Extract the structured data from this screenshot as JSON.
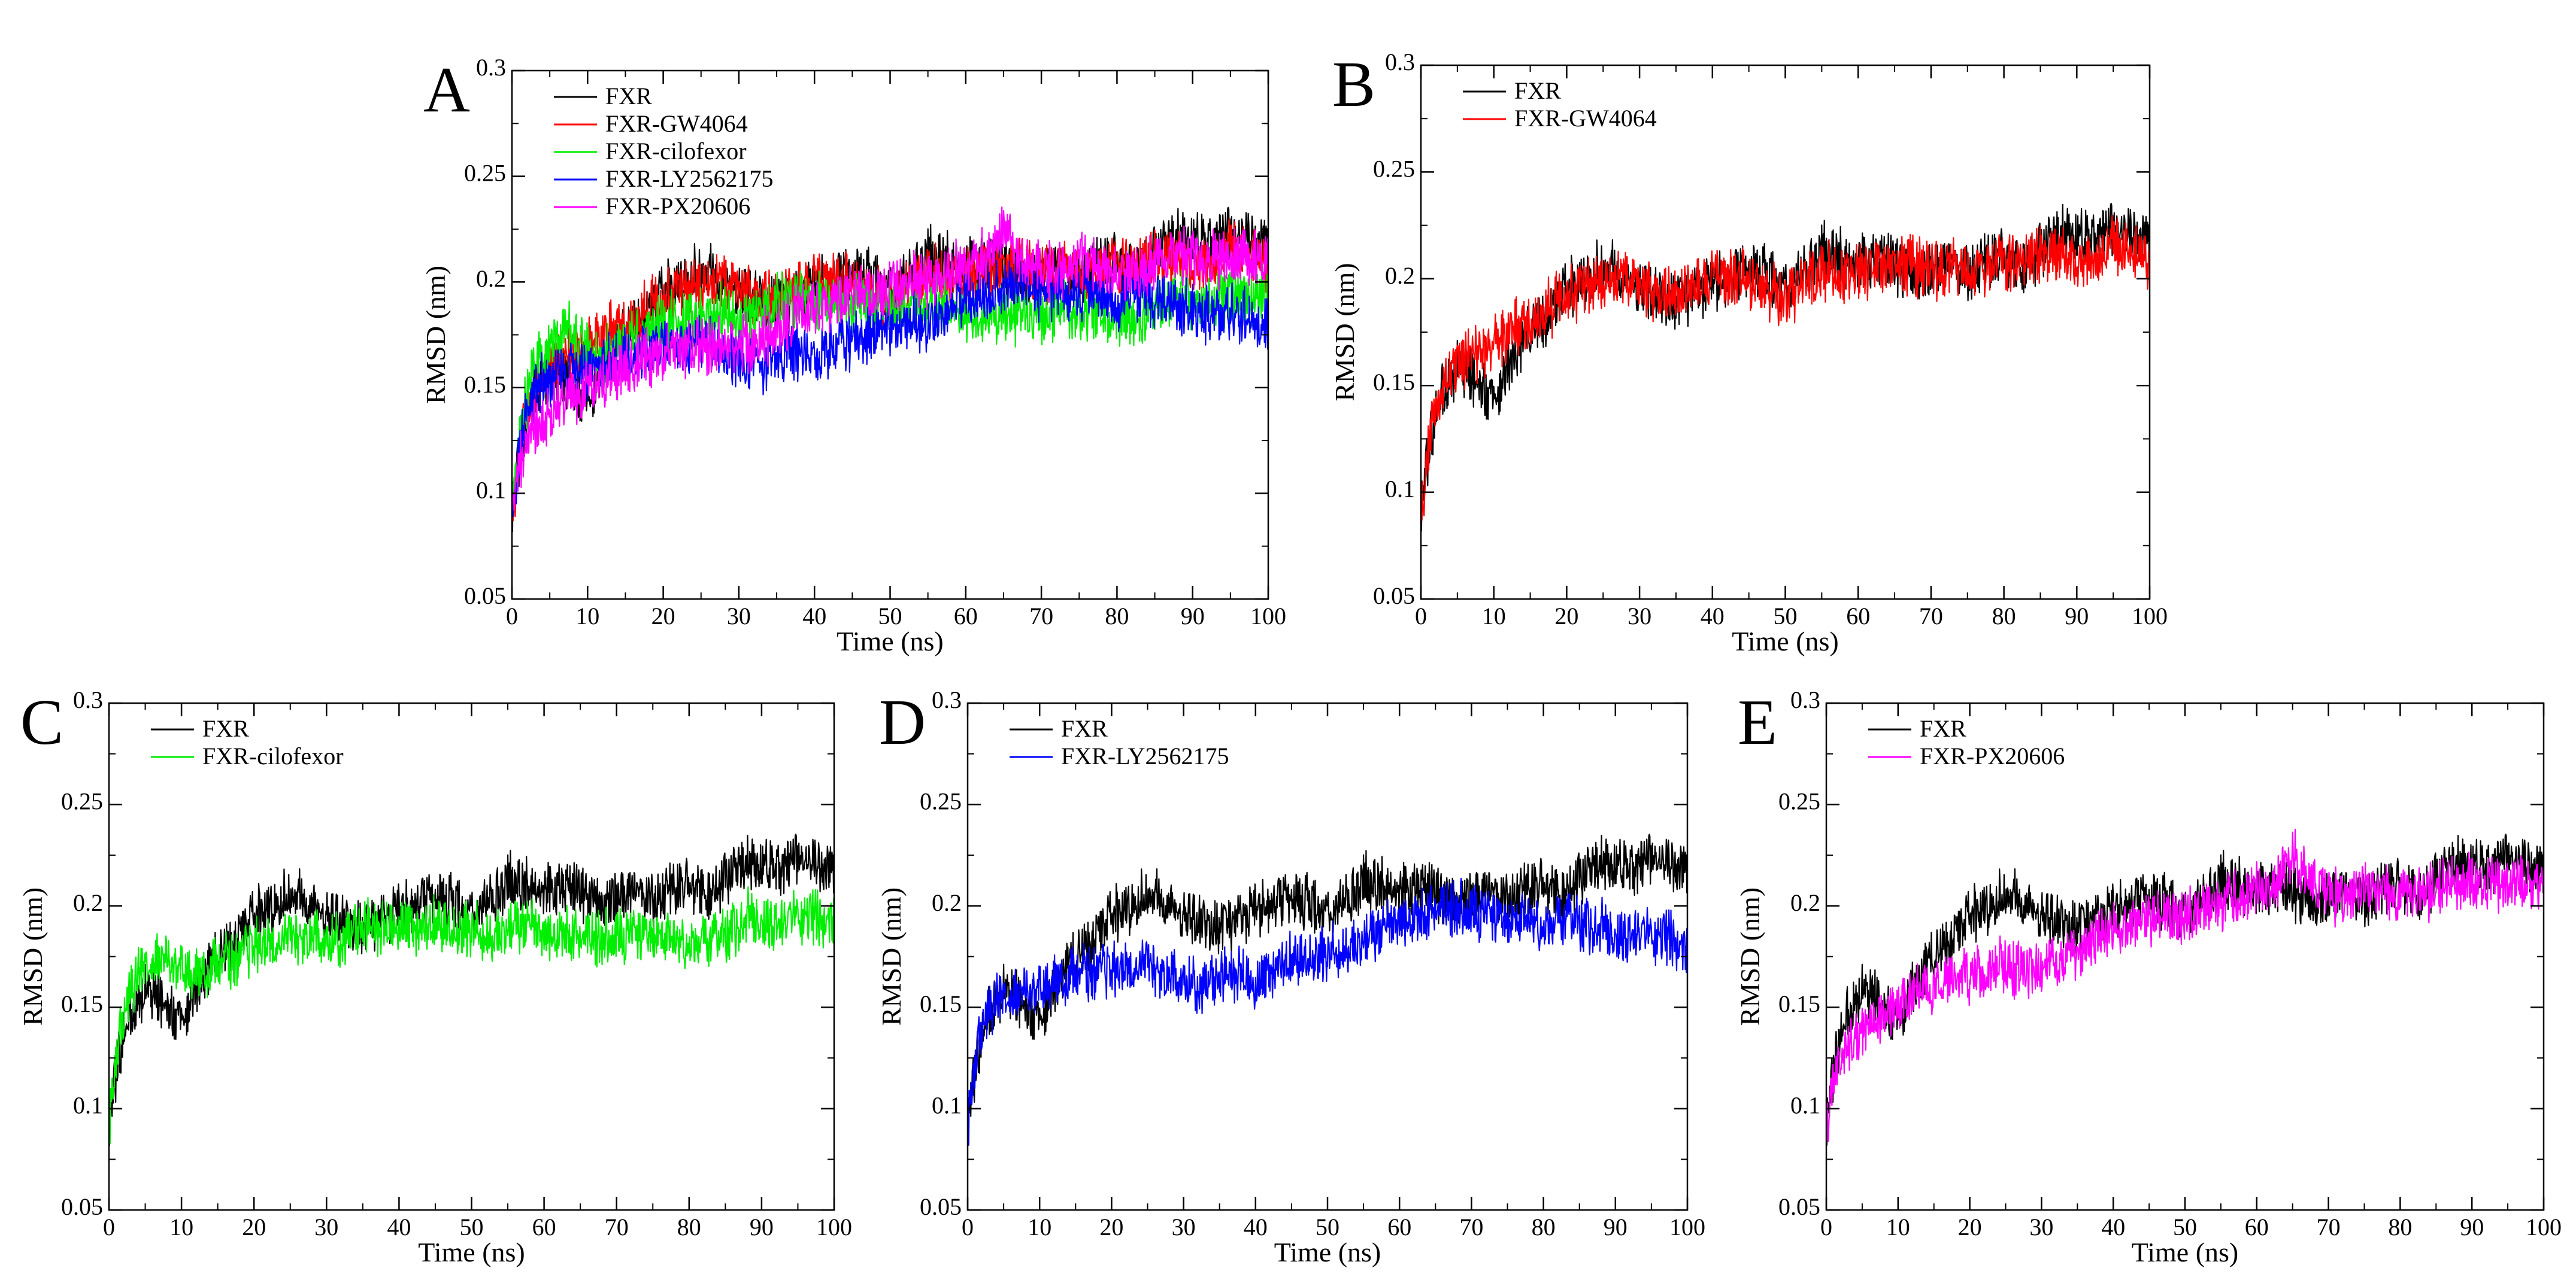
{
  "figure": {
    "colors": {
      "FXR": "#000000",
      "FXR-GW4064": "#ff0000",
      "FXR-cilofexor": "#00ee00",
      "FXR-LY2562175": "#0000ff",
      "FXR-PX20606": "#ff00ff"
    }
  },
  "chart_data": [
    {
      "panel": "A",
      "type": "line",
      "xlabel": "Time (ns)",
      "ylabel": "RMSD (nm)",
      "xlim": [
        0,
        100
      ],
      "ylim": [
        0.05,
        0.3
      ],
      "xticks": [
        "0",
        "10",
        "20",
        "30",
        "40",
        "50",
        "60",
        "70",
        "80",
        "90",
        "100"
      ],
      "yticks": [
        "0.05",
        "0.1",
        "0.15",
        "0.2",
        "0.25",
        "0.3"
      ],
      "grid": false,
      "legend": "top-left",
      "x": [
        0,
        1,
        2,
        3,
        5,
        7,
        10,
        12,
        15,
        18,
        20,
        22,
        25,
        28,
        30,
        33,
        35,
        38,
        40,
        43,
        45,
        48,
        50,
        53,
        55,
        58,
        60,
        63,
        65,
        68,
        70,
        73,
        75,
        78,
        80,
        83,
        85,
        88,
        90,
        93,
        95,
        98,
        100
      ],
      "series": [
        {
          "name": "FXR",
          "values": [
            0.09,
            0.12,
            0.135,
            0.148,
            0.158,
            0.155,
            0.14,
            0.16,
            0.175,
            0.185,
            0.195,
            0.198,
            0.205,
            0.202,
            0.195,
            0.19,
            0.188,
            0.192,
            0.198,
            0.203,
            0.205,
            0.2,
            0.198,
            0.202,
            0.212,
            0.21,
            0.208,
            0.21,
            0.205,
            0.2,
            0.205,
            0.207,
            0.202,
            0.208,
            0.21,
            0.205,
            0.213,
            0.22,
            0.222,
            0.218,
            0.225,
            0.22,
            0.215
          ]
        },
        {
          "name": "FXR-GW4064",
          "values": [
            0.09,
            0.12,
            0.138,
            0.15,
            0.16,
            0.165,
            0.17,
            0.175,
            0.18,
            0.188,
            0.192,
            0.195,
            0.198,
            0.2,
            0.197,
            0.19,
            0.192,
            0.198,
            0.203,
            0.2,
            0.2,
            0.195,
            0.19,
            0.198,
            0.205,
            0.2,
            0.202,
            0.205,
            0.21,
            0.205,
            0.203,
            0.208,
            0.203,
            0.205,
            0.208,
            0.207,
            0.21,
            0.212,
            0.205,
            0.21,
            0.215,
            0.212,
            0.21
          ]
        },
        {
          "name": "FXR-cilofexor",
          "values": [
            0.09,
            0.125,
            0.145,
            0.16,
            0.17,
            0.178,
            0.168,
            0.165,
            0.17,
            0.175,
            0.182,
            0.18,
            0.185,
            0.185,
            0.182,
            0.185,
            0.19,
            0.19,
            0.192,
            0.188,
            0.19,
            0.188,
            0.19,
            0.185,
            0.188,
            0.19,
            0.185,
            0.187,
            0.184,
            0.185,
            0.183,
            0.188,
            0.185,
            0.184,
            0.182,
            0.184,
            0.186,
            0.195,
            0.192,
            0.19,
            0.195,
            0.193,
            0.195
          ]
        },
        {
          "name": "FXR-LY2562175",
          "values": [
            0.09,
            0.12,
            0.14,
            0.15,
            0.155,
            0.16,
            0.158,
            0.162,
            0.165,
            0.168,
            0.17,
            0.168,
            0.172,
            0.165,
            0.163,
            0.16,
            0.165,
            0.168,
            0.162,
            0.17,
            0.172,
            0.175,
            0.178,
            0.18,
            0.182,
            0.188,
            0.192,
            0.195,
            0.198,
            0.2,
            0.195,
            0.197,
            0.192,
            0.195,
            0.19,
            0.195,
            0.192,
            0.19,
            0.185,
            0.185,
            0.185,
            0.183,
            0.18
          ]
        },
        {
          "name": "FXR-PX20606",
          "values": [
            0.09,
            0.115,
            0.125,
            0.13,
            0.138,
            0.145,
            0.15,
            0.155,
            0.16,
            0.165,
            0.165,
            0.168,
            0.17,
            0.168,
            0.17,
            0.172,
            0.178,
            0.185,
            0.19,
            0.192,
            0.195,
            0.195,
            0.195,
            0.2,
            0.2,
            0.205,
            0.208,
            0.212,
            0.225,
            0.21,
            0.205,
            0.205,
            0.21,
            0.208,
            0.205,
            0.205,
            0.208,
            0.212,
            0.212,
            0.21,
            0.212,
            0.21,
            0.212
          ]
        }
      ]
    },
    {
      "panel": "B",
      "type": "line",
      "xlabel": "Time (ns)",
      "ylabel": "RMSD (nm)",
      "xlim": [
        0,
        100
      ],
      "ylim": [
        0.05,
        0.3
      ],
      "xticks": [
        "0",
        "10",
        "20",
        "30",
        "40",
        "50",
        "60",
        "70",
        "80",
        "90",
        "100"
      ],
      "yticks": [
        "0.05",
        "0.1",
        "0.15",
        "0.2",
        "0.25",
        "0.3"
      ],
      "grid": false,
      "legend": "top-left",
      "x": [
        0,
        1,
        2,
        3,
        5,
        7,
        10,
        12,
        15,
        18,
        20,
        22,
        25,
        28,
        30,
        33,
        35,
        38,
        40,
        43,
        45,
        48,
        50,
        53,
        55,
        58,
        60,
        63,
        65,
        68,
        70,
        73,
        75,
        78,
        80,
        83,
        85,
        88,
        90,
        93,
        95,
        98,
        100
      ],
      "series": [
        {
          "name": "FXR",
          "values": [
            0.09,
            0.12,
            0.135,
            0.148,
            0.158,
            0.155,
            0.14,
            0.16,
            0.175,
            0.185,
            0.195,
            0.198,
            0.205,
            0.202,
            0.195,
            0.19,
            0.188,
            0.192,
            0.198,
            0.203,
            0.205,
            0.2,
            0.198,
            0.202,
            0.212,
            0.21,
            0.208,
            0.21,
            0.205,
            0.2,
            0.205,
            0.207,
            0.202,
            0.208,
            0.21,
            0.205,
            0.213,
            0.22,
            0.222,
            0.218,
            0.225,
            0.22,
            0.215
          ]
        },
        {
          "name": "FXR-GW4064",
          "values": [
            0.09,
            0.12,
            0.138,
            0.15,
            0.16,
            0.165,
            0.17,
            0.175,
            0.18,
            0.188,
            0.192,
            0.195,
            0.198,
            0.2,
            0.197,
            0.19,
            0.192,
            0.198,
            0.203,
            0.2,
            0.2,
            0.195,
            0.19,
            0.198,
            0.205,
            0.2,
            0.202,
            0.205,
            0.21,
            0.205,
            0.203,
            0.208,
            0.203,
            0.205,
            0.208,
            0.207,
            0.21,
            0.212,
            0.205,
            0.21,
            0.215,
            0.212,
            0.21
          ]
        }
      ]
    },
    {
      "panel": "C",
      "type": "line",
      "xlabel": "Time (ns)",
      "ylabel": "RMSD (nm)",
      "xlim": [
        0,
        100
      ],
      "ylim": [
        0.05,
        0.3
      ],
      "xticks": [
        "0",
        "10",
        "20",
        "30",
        "40",
        "50",
        "60",
        "70",
        "80",
        "90",
        "100"
      ],
      "yticks": [
        "0.05",
        "0.1",
        "0.15",
        "0.2",
        "0.25",
        "0.3"
      ],
      "grid": false,
      "legend": "top-left",
      "x": [
        0,
        1,
        2,
        3,
        5,
        7,
        10,
        12,
        15,
        18,
        20,
        22,
        25,
        28,
        30,
        33,
        35,
        38,
        40,
        43,
        45,
        48,
        50,
        53,
        55,
        58,
        60,
        63,
        65,
        68,
        70,
        73,
        75,
        78,
        80,
        83,
        85,
        88,
        90,
        93,
        95,
        98,
        100
      ],
      "series": [
        {
          "name": "FXR",
          "values": [
            0.09,
            0.12,
            0.135,
            0.148,
            0.158,
            0.155,
            0.14,
            0.16,
            0.175,
            0.185,
            0.195,
            0.198,
            0.205,
            0.202,
            0.195,
            0.19,
            0.188,
            0.192,
            0.198,
            0.203,
            0.205,
            0.2,
            0.198,
            0.202,
            0.212,
            0.21,
            0.208,
            0.21,
            0.205,
            0.2,
            0.205,
            0.207,
            0.202,
            0.208,
            0.21,
            0.205,
            0.213,
            0.22,
            0.222,
            0.218,
            0.225,
            0.22,
            0.215
          ]
        },
        {
          "name": "FXR-cilofexor",
          "values": [
            0.09,
            0.125,
            0.145,
            0.16,
            0.17,
            0.178,
            0.168,
            0.165,
            0.17,
            0.175,
            0.182,
            0.18,
            0.185,
            0.185,
            0.182,
            0.185,
            0.19,
            0.19,
            0.192,
            0.188,
            0.19,
            0.188,
            0.19,
            0.185,
            0.188,
            0.19,
            0.185,
            0.187,
            0.184,
            0.185,
            0.183,
            0.188,
            0.185,
            0.184,
            0.182,
            0.184,
            0.186,
            0.195,
            0.192,
            0.19,
            0.195,
            0.193,
            0.195
          ]
        }
      ]
    },
    {
      "panel": "D",
      "type": "line",
      "xlabel": "Time (ns)",
      "ylabel": "RMSD (nm)",
      "xlim": [
        0,
        100
      ],
      "ylim": [
        0.05,
        0.3
      ],
      "xticks": [
        "0",
        "10",
        "20",
        "30",
        "40",
        "50",
        "60",
        "70",
        "80",
        "90",
        "100"
      ],
      "yticks": [
        "0.05",
        "0.1",
        "0.15",
        "0.2",
        "0.25",
        "0.3"
      ],
      "grid": false,
      "legend": "top-left",
      "x": [
        0,
        1,
        2,
        3,
        5,
        7,
        10,
        12,
        15,
        18,
        20,
        22,
        25,
        28,
        30,
        33,
        35,
        38,
        40,
        43,
        45,
        48,
        50,
        53,
        55,
        58,
        60,
        63,
        65,
        68,
        70,
        73,
        75,
        78,
        80,
        83,
        85,
        88,
        90,
        93,
        95,
        98,
        100
      ],
      "series": [
        {
          "name": "FXR",
          "values": [
            0.09,
            0.12,
            0.135,
            0.148,
            0.158,
            0.155,
            0.14,
            0.16,
            0.175,
            0.185,
            0.195,
            0.198,
            0.205,
            0.202,
            0.195,
            0.19,
            0.188,
            0.192,
            0.198,
            0.203,
            0.205,
            0.2,
            0.198,
            0.202,
            0.212,
            0.21,
            0.208,
            0.21,
            0.205,
            0.2,
            0.205,
            0.207,
            0.202,
            0.208,
            0.21,
            0.205,
            0.213,
            0.22,
            0.222,
            0.218,
            0.225,
            0.22,
            0.215
          ]
        },
        {
          "name": "FXR-LY2562175",
          "values": [
            0.09,
            0.12,
            0.14,
            0.15,
            0.155,
            0.16,
            0.158,
            0.162,
            0.165,
            0.168,
            0.17,
            0.168,
            0.172,
            0.165,
            0.163,
            0.16,
            0.165,
            0.168,
            0.162,
            0.17,
            0.172,
            0.175,
            0.178,
            0.18,
            0.182,
            0.188,
            0.192,
            0.195,
            0.198,
            0.2,
            0.195,
            0.197,
            0.192,
            0.195,
            0.19,
            0.195,
            0.192,
            0.19,
            0.185,
            0.185,
            0.185,
            0.183,
            0.18
          ]
        }
      ]
    },
    {
      "panel": "E",
      "type": "line",
      "xlabel": "Time (ns)",
      "ylabel": "RMSD (nm)",
      "xlim": [
        0,
        100
      ],
      "ylim": [
        0.05,
        0.3
      ],
      "xticks": [
        "0",
        "10",
        "20",
        "30",
        "40",
        "50",
        "60",
        "70",
        "80",
        "90",
        "100"
      ],
      "yticks": [
        "0.05",
        "0.1",
        "0.15",
        "0.2",
        "0.25",
        "0.3"
      ],
      "grid": false,
      "legend": "top-left",
      "x": [
        0,
        1,
        2,
        3,
        5,
        7,
        10,
        12,
        15,
        18,
        20,
        22,
        25,
        28,
        30,
        33,
        35,
        38,
        40,
        43,
        45,
        48,
        50,
        53,
        55,
        58,
        60,
        63,
        65,
        68,
        70,
        73,
        75,
        78,
        80,
        83,
        85,
        88,
        90,
        93,
        95,
        98,
        100
      ],
      "series": [
        {
          "name": "FXR",
          "values": [
            0.09,
            0.12,
            0.135,
            0.148,
            0.158,
            0.155,
            0.14,
            0.16,
            0.175,
            0.185,
            0.195,
            0.198,
            0.205,
            0.202,
            0.195,
            0.19,
            0.188,
            0.192,
            0.198,
            0.203,
            0.205,
            0.2,
            0.198,
            0.202,
            0.212,
            0.21,
            0.208,
            0.21,
            0.205,
            0.2,
            0.205,
            0.207,
            0.202,
            0.208,
            0.21,
            0.205,
            0.213,
            0.22,
            0.222,
            0.218,
            0.225,
            0.22,
            0.215
          ]
        },
        {
          "name": "FXR-PX20606",
          "values": [
            0.09,
            0.115,
            0.125,
            0.13,
            0.138,
            0.145,
            0.15,
            0.155,
            0.16,
            0.165,
            0.165,
            0.168,
            0.17,
            0.168,
            0.17,
            0.172,
            0.178,
            0.185,
            0.19,
            0.192,
            0.195,
            0.195,
            0.195,
            0.2,
            0.2,
            0.205,
            0.208,
            0.212,
            0.225,
            0.21,
            0.205,
            0.205,
            0.21,
            0.208,
            0.205,
            0.205,
            0.208,
            0.212,
            0.212,
            0.21,
            0.212,
            0.21,
            0.212
          ]
        }
      ]
    }
  ]
}
